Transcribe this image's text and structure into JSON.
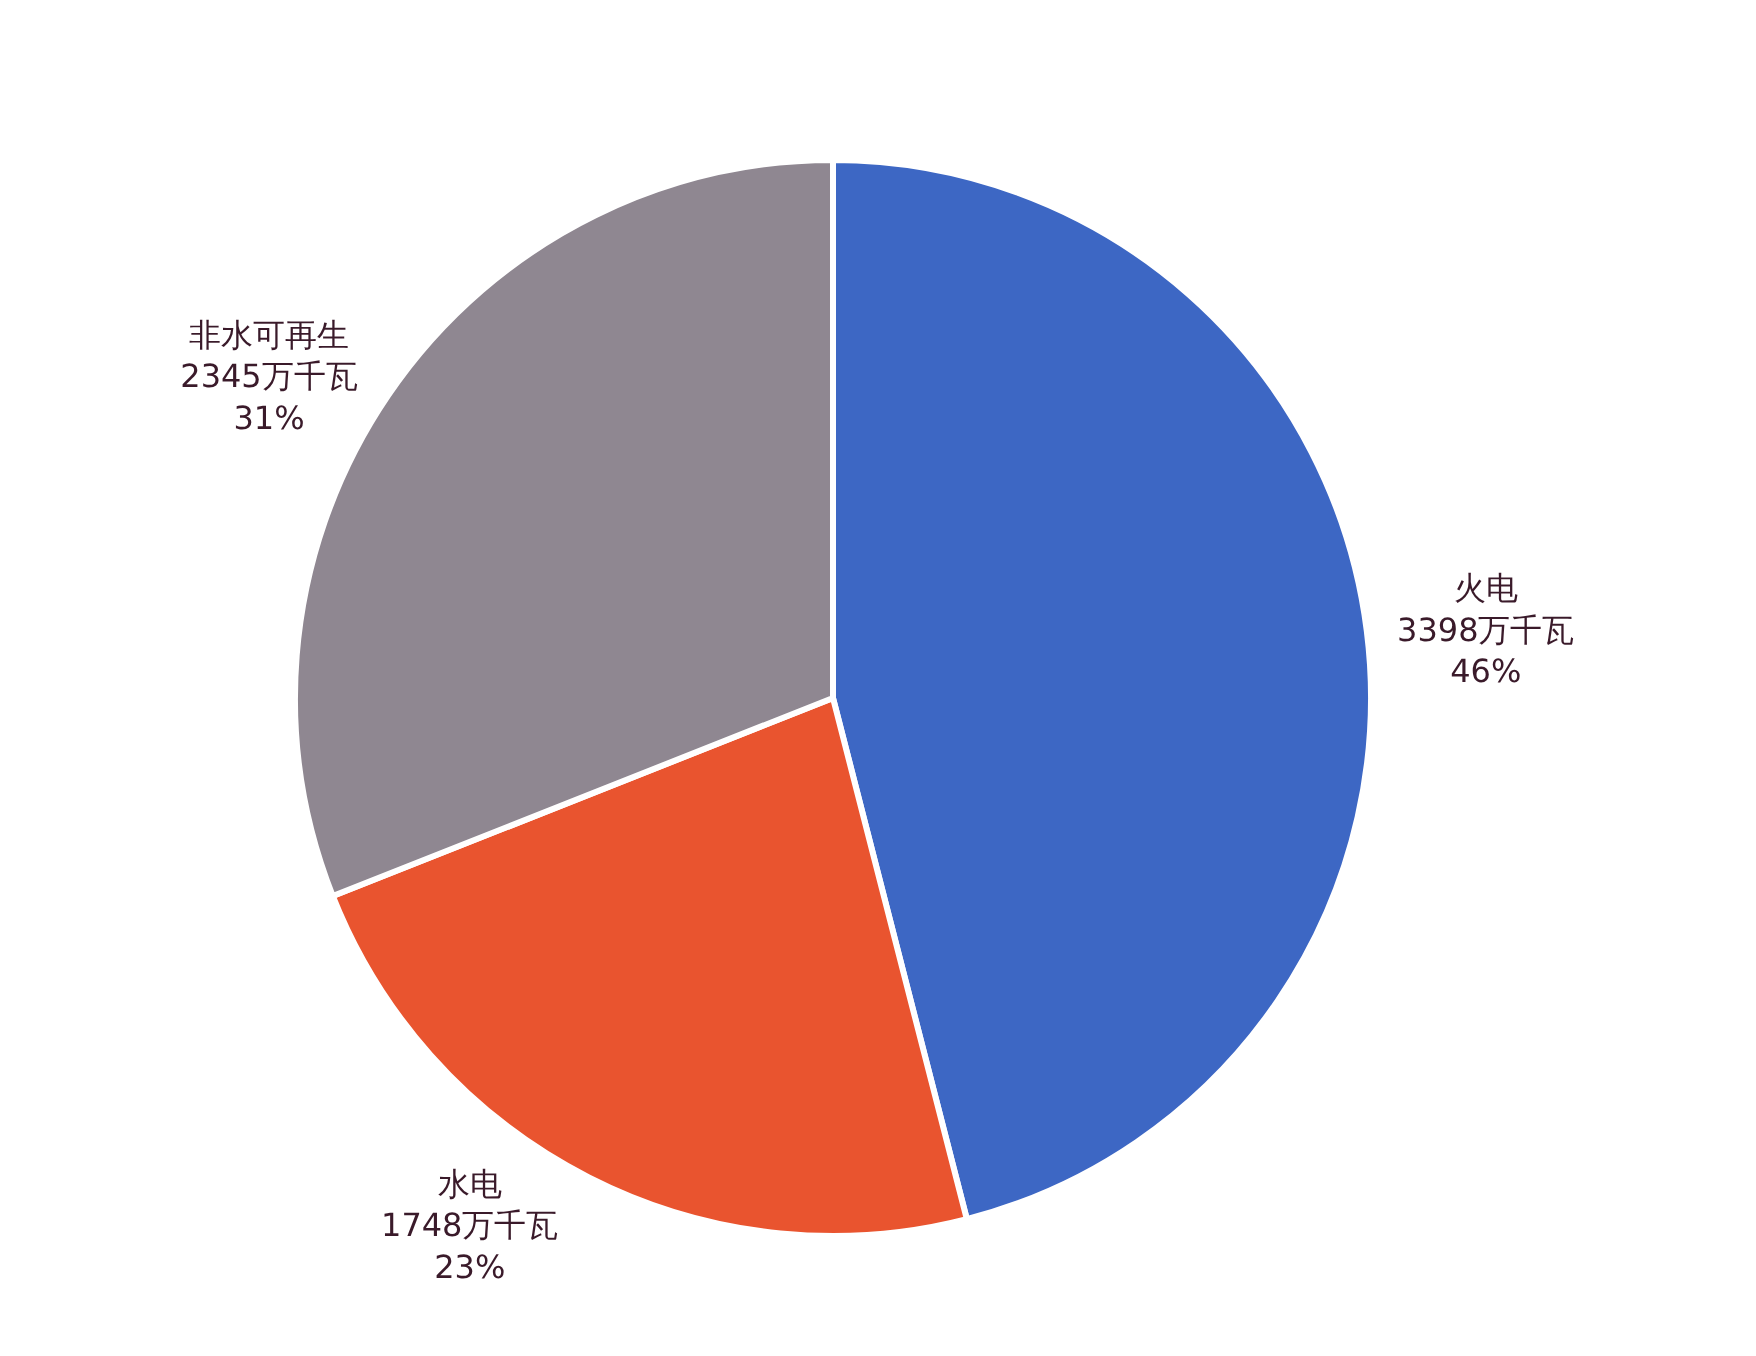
{
  "chart_data": {
    "type": "pie",
    "categories": [
      "火电",
      "水电",
      "非水可再生"
    ],
    "values": [
      46,
      23,
      31
    ],
    "colors": [
      "#3d67c4",
      "#e9542f",
      "#8f8791"
    ],
    "value_labels": [
      "3398万千瓦\n46%",
      "1748万千瓦\n23%",
      "2345万千瓦\n31%"
    ],
    "legend": false
  }
}
